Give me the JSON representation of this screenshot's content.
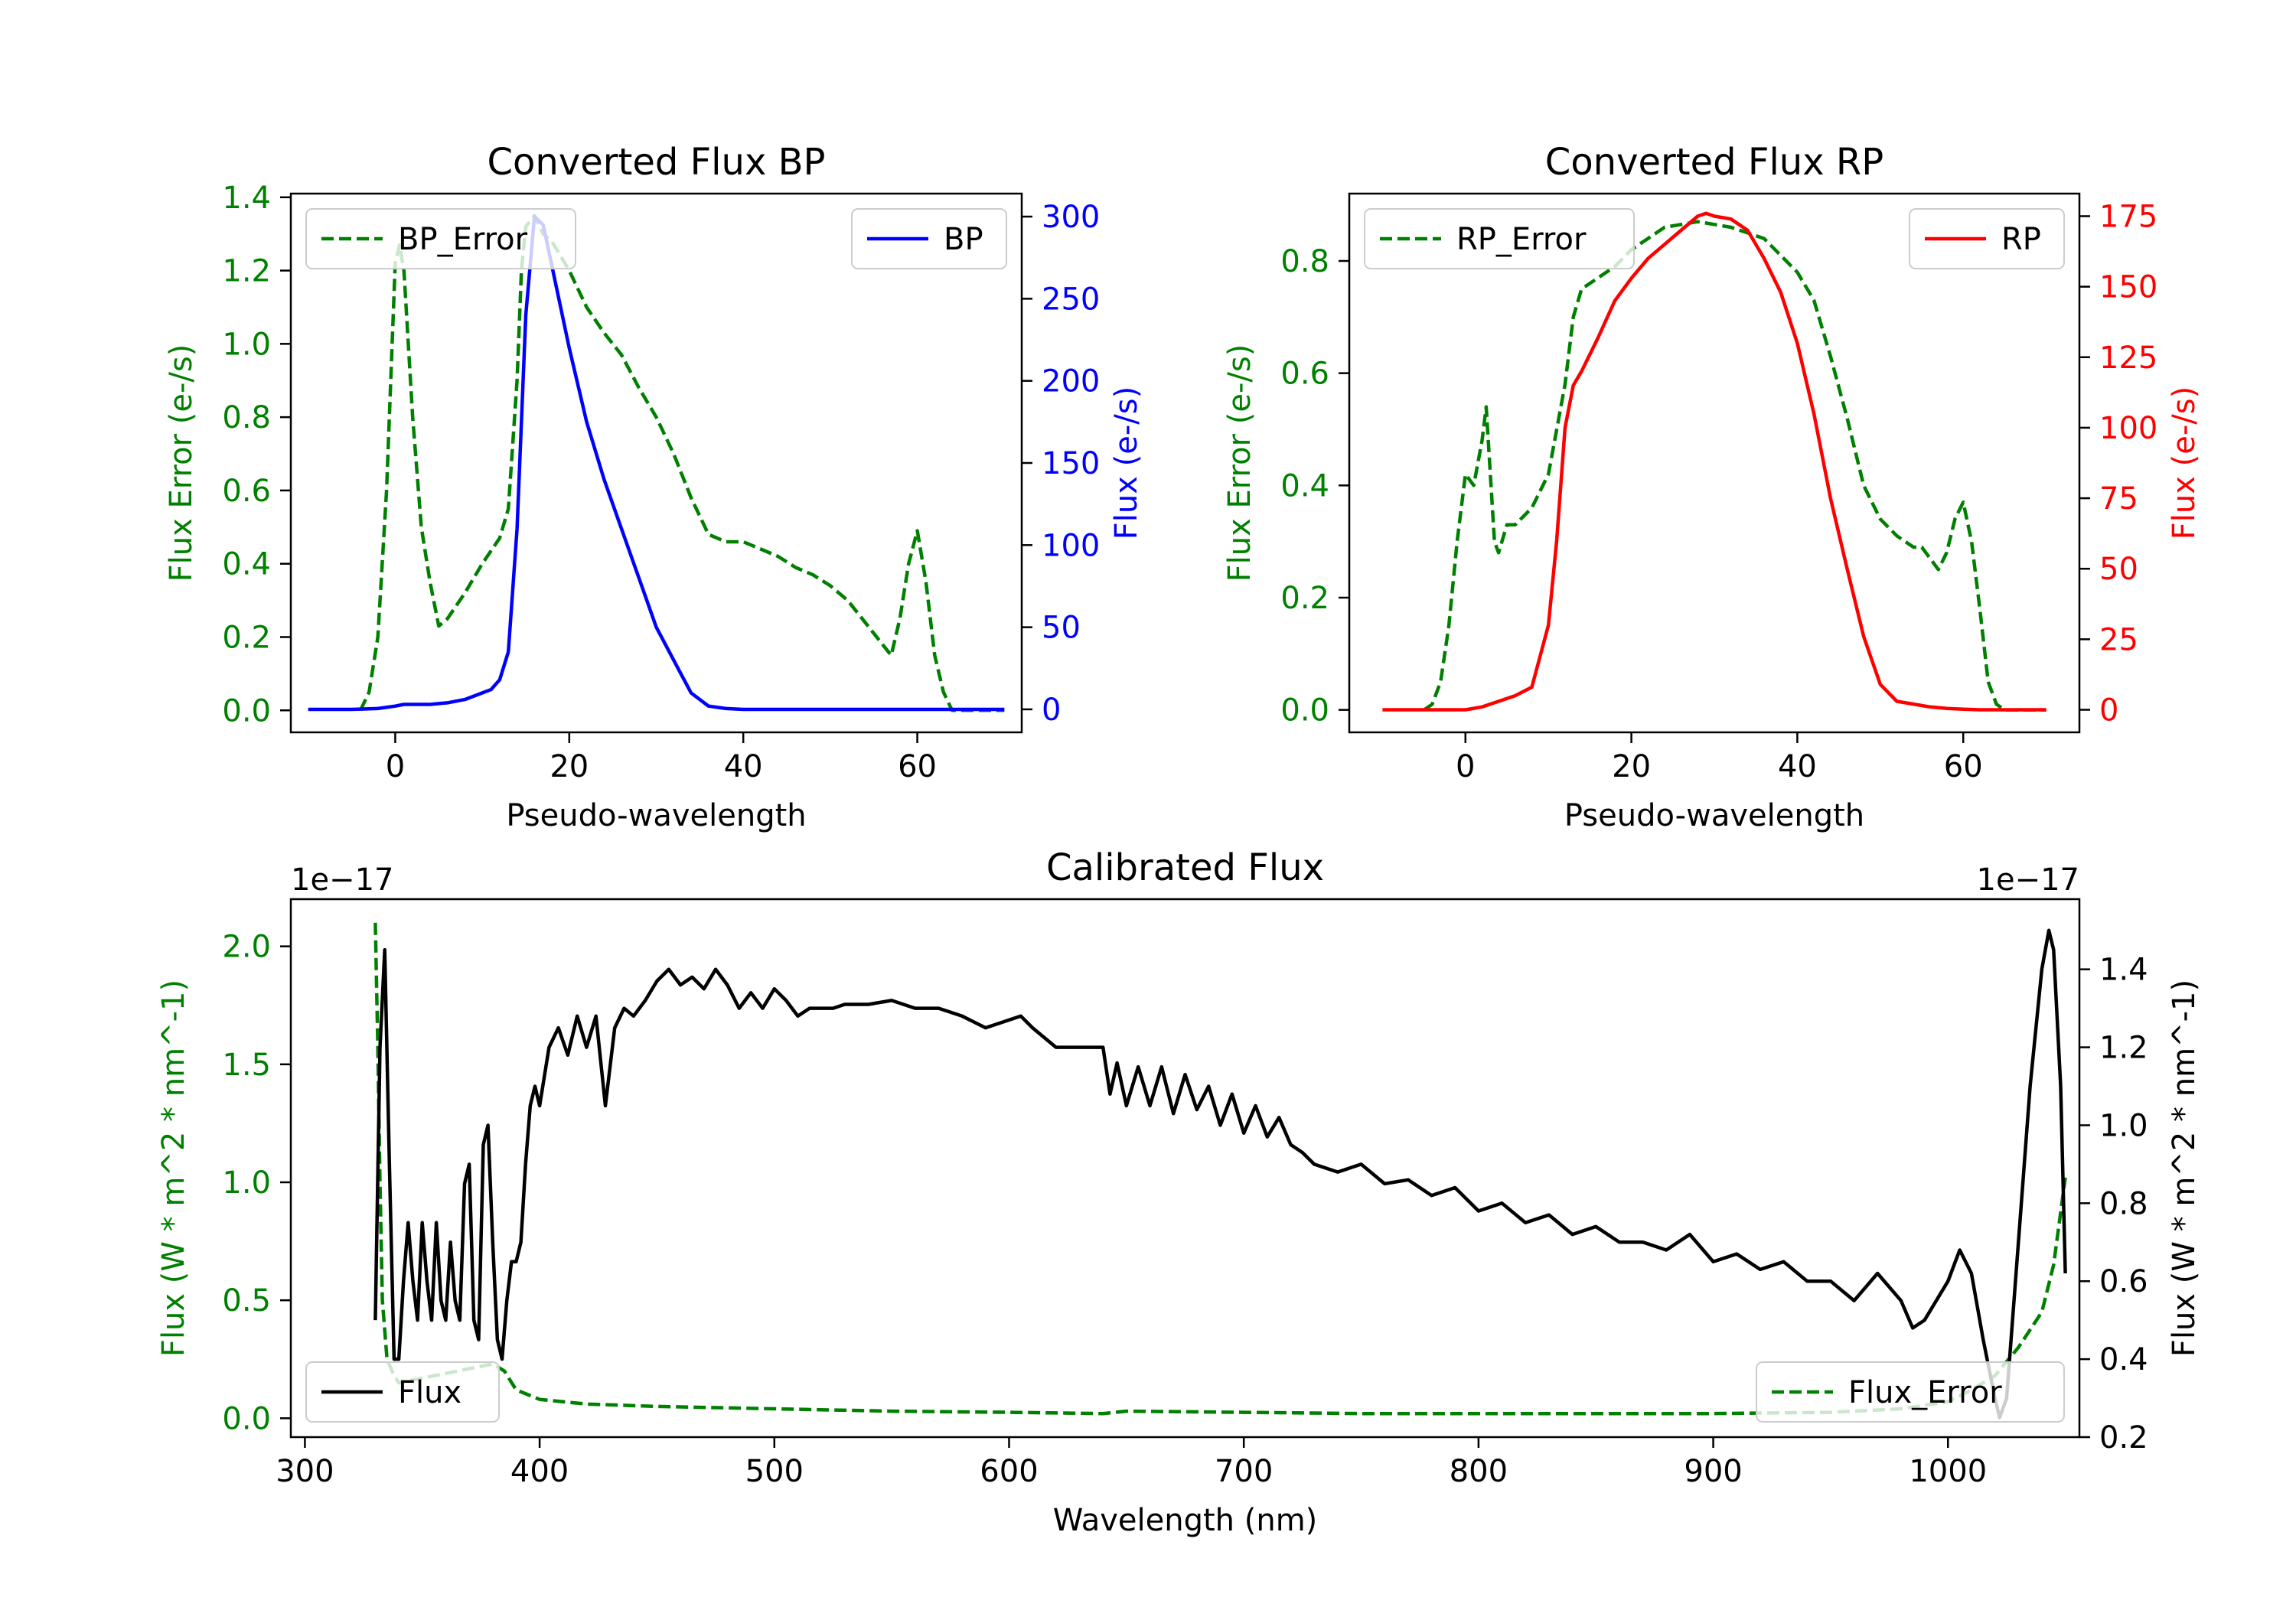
{
  "chart_data": [
    {
      "type": "line",
      "title": "Converted Flux BP",
      "xlabel": "Pseudo-wavelength",
      "ylabel_left": "Flux Error (e-/s)",
      "ylabel_right": "Flux (e-/s)",
      "xlim": [
        -12,
        72
      ],
      "ylim_left": [
        -0.06,
        1.41
      ],
      "ylim_right": [
        -14,
        314
      ],
      "xticks": [
        0,
        20,
        40,
        60
      ],
      "yticks_left": [
        0.0,
        0.2,
        0.4,
        0.6,
        0.8,
        1.0,
        1.2,
        1.4
      ],
      "yticks_right": [
        0,
        50,
        100,
        150,
        200,
        250,
        300
      ],
      "series": [
        {
          "name": "BP_Error",
          "axis": "left",
          "style": "dashed",
          "color": "#008000",
          "x": [
            -4,
            -3,
            -2,
            -1,
            0,
            0.5,
            1,
            2,
            3,
            4,
            5,
            6,
            8,
            10,
            12,
            13,
            14,
            14.5,
            15,
            16,
            17,
            18,
            20,
            22,
            24,
            26,
            28,
            30,
            32,
            34,
            36,
            38,
            40,
            42,
            44,
            46,
            48,
            50,
            52,
            54,
            56,
            57,
            58,
            59,
            60,
            61,
            62,
            63,
            64,
            66,
            68,
            70
          ],
          "values": [
            0.0,
            0.05,
            0.2,
            0.6,
            1.22,
            1.27,
            1.2,
            0.8,
            0.5,
            0.35,
            0.23,
            0.25,
            0.32,
            0.4,
            0.47,
            0.55,
            0.9,
            1.2,
            1.32,
            1.35,
            1.3,
            1.28,
            1.2,
            1.1,
            1.03,
            0.97,
            0.88,
            0.8,
            0.7,
            0.58,
            0.48,
            0.46,
            0.46,
            0.44,
            0.42,
            0.39,
            0.37,
            0.34,
            0.3,
            0.24,
            0.18,
            0.15,
            0.25,
            0.4,
            0.49,
            0.35,
            0.15,
            0.05,
            0.0,
            0.0,
            0.0,
            0.0
          ]
        },
        {
          "name": "BP",
          "axis": "right",
          "style": "solid",
          "color": "#0000ff",
          "x": [
            -10,
            -5,
            -2,
            0,
            1,
            2,
            4,
            6,
            8,
            10,
            11,
            12,
            13,
            14,
            15,
            16,
            17,
            18,
            20,
            22,
            24,
            26,
            28,
            30,
            32,
            34,
            36,
            38,
            40,
            44,
            50,
            56,
            60,
            65,
            70
          ],
          "values": [
            0,
            0,
            0.5,
            2,
            3,
            3,
            3,
            4,
            6,
            10,
            12,
            18,
            35,
            110,
            240,
            300,
            295,
            270,
            220,
            175,
            140,
            110,
            80,
            50,
            30,
            10,
            2,
            0.5,
            0,
            0,
            0,
            0,
            0,
            0,
            0
          ]
        }
      ],
      "legend": [
        {
          "label": "BP_Error",
          "location": "upper left"
        },
        {
          "label": "BP",
          "location": "upper right"
        }
      ]
    },
    {
      "type": "line",
      "title": "Converted Flux RP",
      "xlabel": "Pseudo-wavelength",
      "ylabel_left": "Flux Error (e-/s)",
      "ylabel_right": "Flux (e-/s)",
      "xlim": [
        -14,
        74
      ],
      "ylim_left": [
        -0.04,
        0.92
      ],
      "ylim_right": [
        -8,
        183
      ],
      "xticks": [
        0,
        20,
        40,
        60
      ],
      "yticks_left": [
        0.0,
        0.2,
        0.4,
        0.6,
        0.8
      ],
      "yticks_right": [
        0,
        25,
        50,
        75,
        100,
        125,
        150,
        175
      ],
      "series": [
        {
          "name": "RP_Error",
          "axis": "left",
          "style": "dashed",
          "color": "#008000",
          "x": [
            -5,
            -4,
            -3,
            -2,
            -1,
            0,
            1,
            2,
            2.5,
            3,
            3.5,
            4,
            5,
            6,
            8,
            10,
            12,
            13,
            14,
            16,
            18,
            20,
            22,
            24,
            26,
            28,
            30,
            32,
            34,
            36,
            38,
            40,
            42,
            44,
            46,
            48,
            50,
            52,
            54,
            55,
            56,
            57,
            58,
            59,
            60,
            61,
            62,
            63,
            64,
            65,
            66,
            70
          ],
          "values": [
            0.0,
            0.01,
            0.05,
            0.15,
            0.3,
            0.42,
            0.4,
            0.48,
            0.54,
            0.42,
            0.3,
            0.28,
            0.33,
            0.33,
            0.36,
            0.42,
            0.58,
            0.7,
            0.75,
            0.77,
            0.79,
            0.82,
            0.84,
            0.86,
            0.865,
            0.87,
            0.865,
            0.86,
            0.85,
            0.84,
            0.81,
            0.78,
            0.73,
            0.63,
            0.52,
            0.4,
            0.34,
            0.31,
            0.29,
            0.29,
            0.27,
            0.25,
            0.28,
            0.34,
            0.37,
            0.3,
            0.18,
            0.05,
            0.01,
            0.0,
            0.0,
            0.0
          ]
        },
        {
          "name": "RP",
          "axis": "right",
          "style": "solid",
          "color": "#ff0000",
          "x": [
            -10,
            -4,
            0,
            2,
            4,
            6,
            8,
            10,
            11,
            12,
            13,
            14,
            16,
            18,
            20,
            22,
            24,
            26,
            28,
            29,
            30,
            32,
            34,
            36,
            38,
            40,
            42,
            44,
            46,
            48,
            50,
            52,
            54,
            56,
            58,
            60,
            62,
            64,
            66,
            70
          ],
          "values": [
            0,
            0,
            0,
            1,
            3,
            5,
            8,
            30,
            60,
            100,
            115,
            120,
            132,
            145,
            153,
            160,
            165,
            170,
            175,
            176,
            175,
            174,
            170,
            160,
            148,
            130,
            105,
            75,
            50,
            26,
            9,
            3,
            2,
            1,
            0.5,
            0.2,
            0,
            0,
            0,
            0
          ]
        }
      ],
      "legend": [
        {
          "label": "RP_Error",
          "location": "upper left"
        },
        {
          "label": "RP",
          "location": "upper right"
        }
      ]
    },
    {
      "type": "line",
      "title": "Calibrated Flux",
      "xlabel": "Wavelength (nm)",
      "ylabel_left": "Flux (W * m^2 * nm^-1)",
      "ylabel_right": "Flux (W * m^2 * nm^-1)",
      "offset_left": "1e−17",
      "offset_right": "1e−17",
      "xlim": [
        294,
        1056
      ],
      "ylim_left": [
        -0.08,
        2.2
      ],
      "ylim_right": [
        0.2,
        1.58
      ],
      "xticks": [
        300,
        400,
        500,
        600,
        700,
        800,
        900,
        1000
      ],
      "yticks_left": [
        0.0,
        0.5,
        1.0,
        1.5,
        2.0
      ],
      "yticks_right": [
        0.2,
        0.4,
        0.6,
        0.8,
        1.0,
        1.2,
        1.4
      ],
      "series": [
        {
          "name": "Flux_Error",
          "axis": "left",
          "style": "dashed",
          "color": "#008000",
          "x": [
            330,
            331,
            332,
            333,
            335,
            338,
            340,
            345,
            350,
            360,
            370,
            380,
            385,
            390,
            400,
            420,
            450,
            500,
            550,
            600,
            640,
            650,
            700,
            750,
            800,
            850,
            900,
            950,
            980,
            1000,
            1010,
            1020,
            1030,
            1040,
            1045,
            1050
          ],
          "values": [
            2.1,
            1.6,
            1.0,
            0.5,
            0.25,
            0.18,
            0.15,
            0.16,
            0.17,
            0.19,
            0.21,
            0.23,
            0.2,
            0.12,
            0.08,
            0.06,
            0.05,
            0.04,
            0.03,
            0.025,
            0.02,
            0.03,
            0.025,
            0.02,
            0.02,
            0.02,
            0.02,
            0.025,
            0.04,
            0.07,
            0.12,
            0.18,
            0.3,
            0.45,
            0.65,
            1.02
          ]
        },
        {
          "name": "Flux",
          "axis": "right",
          "style": "solid",
          "color": "#000000",
          "x": [
            330,
            332,
            334,
            336,
            338,
            340,
            342,
            344,
            346,
            348,
            350,
            352,
            354,
            356,
            358,
            360,
            362,
            364,
            366,
            368,
            370,
            372,
            374,
            376,
            378,
            380,
            382,
            384,
            386,
            388,
            390,
            392,
            394,
            396,
            398,
            400,
            404,
            408,
            412,
            416,
            420,
            424,
            428,
            432,
            436,
            440,
            445,
            450,
            455,
            460,
            465,
            470,
            475,
            480,
            485,
            490,
            495,
            500,
            505,
            510,
            515,
            520,
            525,
            530,
            540,
            550,
            560,
            570,
            580,
            590,
            600,
            605,
            610,
            620,
            630,
            640,
            643,
            646,
            650,
            655,
            660,
            665,
            670,
            675,
            680,
            685,
            690,
            695,
            700,
            705,
            710,
            715,
            720,
            725,
            730,
            740,
            750,
            760,
            770,
            780,
            790,
            800,
            810,
            820,
            830,
            840,
            850,
            860,
            870,
            880,
            890,
            900,
            910,
            920,
            930,
            940,
            950,
            960,
            970,
            980,
            985,
            990,
            1000,
            1005,
            1010,
            1015,
            1020,
            1022,
            1025,
            1030,
            1035,
            1040,
            1043,
            1045,
            1048,
            1050
          ],
          "values": [
            0.5,
            1.2,
            1.45,
            0.9,
            0.4,
            0.4,
            0.6,
            0.75,
            0.6,
            0.5,
            0.75,
            0.6,
            0.5,
            0.75,
            0.55,
            0.5,
            0.7,
            0.55,
            0.5,
            0.85,
            0.9,
            0.5,
            0.45,
            0.95,
            1.0,
            0.7,
            0.45,
            0.4,
            0.55,
            0.65,
            0.65,
            0.7,
            0.9,
            1.05,
            1.1,
            1.05,
            1.2,
            1.25,
            1.18,
            1.28,
            1.2,
            1.28,
            1.05,
            1.25,
            1.3,
            1.28,
            1.32,
            1.37,
            1.4,
            1.36,
            1.38,
            1.35,
            1.4,
            1.36,
            1.3,
            1.34,
            1.3,
            1.35,
            1.32,
            1.28,
            1.3,
            1.3,
            1.3,
            1.31,
            1.31,
            1.32,
            1.3,
            1.3,
            1.28,
            1.25,
            1.27,
            1.28,
            1.25,
            1.2,
            1.2,
            1.2,
            1.08,
            1.16,
            1.05,
            1.15,
            1.05,
            1.15,
            1.03,
            1.13,
            1.04,
            1.1,
            1.0,
            1.08,
            0.98,
            1.05,
            0.97,
            1.02,
            0.95,
            0.93,
            0.9,
            0.88,
            0.9,
            0.85,
            0.86,
            0.82,
            0.84,
            0.78,
            0.8,
            0.75,
            0.77,
            0.72,
            0.74,
            0.7,
            0.7,
            0.68,
            0.72,
            0.65,
            0.67,
            0.63,
            0.65,
            0.6,
            0.6,
            0.55,
            0.62,
            0.55,
            0.48,
            0.5,
            0.6,
            0.68,
            0.62,
            0.45,
            0.3,
            0.25,
            0.3,
            0.7,
            1.1,
            1.4,
            1.5,
            1.45,
            1.1,
            0.62
          ]
        }
      ],
      "legend": [
        {
          "label": "Flux",
          "location": "lower left"
        },
        {
          "label": "Flux_Error",
          "location": "lower right"
        }
      ]
    }
  ]
}
